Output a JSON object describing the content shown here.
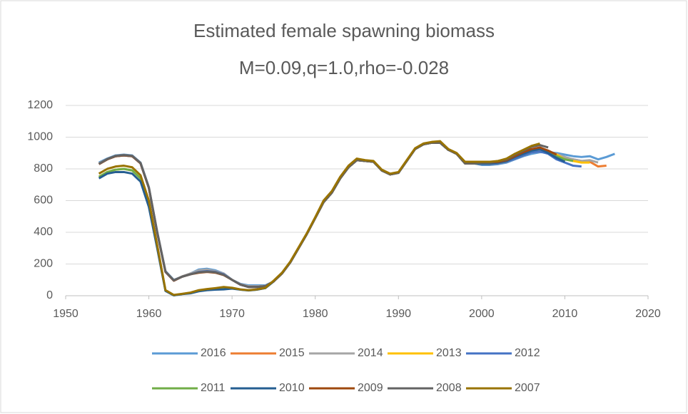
{
  "chart_data": {
    "type": "line",
    "title": "Estimated female spawning biomass",
    "subtitle": "M=0.09,q=1.0,rho=-0.028",
    "x": [
      1954,
      1955,
      1956,
      1957,
      1958,
      1959,
      1960,
      1961,
      1962,
      1963,
      1964,
      1965,
      1966,
      1967,
      1968,
      1969,
      1970,
      1971,
      1972,
      1973,
      1974,
      1975,
      1976,
      1977,
      1978,
      1979,
      1980,
      1981,
      1982,
      1983,
      1984,
      1985,
      1986,
      1987,
      1988,
      1989,
      1990,
      1991,
      1992,
      1993,
      1994,
      1995,
      1996,
      1997,
      1998,
      1999,
      2000,
      2001,
      2002,
      2003,
      2004,
      2005,
      2006,
      2007,
      2008,
      2009,
      2010,
      2011,
      2012,
      2013,
      2014,
      2015,
      2016
    ],
    "xlim": [
      1950,
      2020
    ],
    "xticks": [
      1950,
      1960,
      1970,
      1980,
      1990,
      2000,
      2010,
      2020
    ],
    "ylim": [
      0,
      1200
    ],
    "yticks": [
      0,
      200,
      400,
      600,
      800,
      1000,
      1200
    ],
    "grid": true,
    "legend": "bottom",
    "series": [
      {
        "name": "2016",
        "color": "#5b9bd5",
        "values": [
          840,
          865,
          885,
          890,
          885,
          840,
          685,
          405,
          155,
          100,
          120,
          140,
          165,
          170,
          160,
          140,
          100,
          75,
          65,
          65,
          65,
          90,
          140,
          210,
          300,
          390,
          490,
          590,
          650,
          740,
          810,
          855,
          850,
          845,
          790,
          765,
          775,
          850,
          925,
          955,
          965,
          965,
          920,
          895,
          835,
          835,
          825,
          825,
          830,
          840,
          860,
          880,
          895,
          905,
          905,
          900,
          890,
          880,
          875,
          880,
          860,
          875,
          895
        ]
      },
      {
        "name": "2015",
        "color": "#ed7d31",
        "values": [
          830,
          860,
          880,
          885,
          880,
          835,
          680,
          400,
          150,
          95,
          120,
          135,
          150,
          155,
          150,
          135,
          100,
          70,
          55,
          55,
          60,
          90,
          140,
          210,
          300,
          390,
          490,
          590,
          650,
          740,
          810,
          855,
          850,
          845,
          790,
          765,
          775,
          850,
          925,
          955,
          965,
          965,
          920,
          895,
          835,
          835,
          830,
          830,
          835,
          845,
          865,
          885,
          905,
          910,
          905,
          890,
          870,
          860,
          850,
          845,
          815,
          820,
          null
        ]
      },
      {
        "name": "2014",
        "color": "#a5a5a5",
        "values": [
          835,
          862,
          882,
          887,
          882,
          838,
          682,
          402,
          152,
          98,
          122,
          140,
          160,
          165,
          155,
          140,
          100,
          72,
          60,
          60,
          62,
          90,
          140,
          210,
          300,
          390,
          490,
          590,
          650,
          740,
          810,
          855,
          850,
          845,
          790,
          765,
          775,
          850,
          925,
          955,
          965,
          965,
          920,
          895,
          835,
          835,
          830,
          830,
          835,
          845,
          870,
          890,
          910,
          920,
          910,
          895,
          875,
          860,
          850,
          855,
          840,
          null,
          null
        ]
      },
      {
        "name": "2013",
        "color": "#ffc000",
        "values": [
          750,
          780,
          795,
          800,
          790,
          740,
          580,
          310,
          32,
          3,
          11,
          18,
          32,
          38,
          43,
          48,
          48,
          39,
          34,
          39,
          49,
          90,
          140,
          210,
          300,
          390,
          490,
          590,
          650,
          740,
          810,
          855,
          850,
          845,
          790,
          765,
          775,
          850,
          925,
          955,
          965,
          965,
          920,
          895,
          835,
          835,
          830,
          830,
          835,
          845,
          870,
          890,
          910,
          920,
          910,
          890,
          860,
          850,
          840,
          840,
          null,
          null,
          null
        ]
      },
      {
        "name": "2012",
        "color": "#4472c4",
        "values": [
          830,
          860,
          880,
          885,
          880,
          835,
          680,
          400,
          150,
          95,
          120,
          135,
          150,
          155,
          150,
          135,
          100,
          70,
          55,
          55,
          60,
          90,
          140,
          210,
          300,
          390,
          490,
          590,
          650,
          740,
          810,
          855,
          850,
          845,
          790,
          765,
          775,
          850,
          925,
          955,
          965,
          965,
          920,
          895,
          835,
          835,
          830,
          830,
          835,
          845,
          865,
          885,
          905,
          910,
          895,
          860,
          840,
          820,
          815,
          null,
          null,
          null,
          null
        ]
      },
      {
        "name": "2011",
        "color": "#70ad47",
        "values": [
          750,
          780,
          795,
          800,
          790,
          740,
          580,
          310,
          32,
          3,
          11,
          18,
          32,
          38,
          43,
          48,
          48,
          39,
          34,
          39,
          49,
          90,
          140,
          210,
          300,
          390,
          490,
          590,
          650,
          740,
          810,
          855,
          850,
          845,
          790,
          765,
          775,
          850,
          925,
          955,
          965,
          965,
          920,
          895,
          835,
          835,
          835,
          835,
          840,
          850,
          875,
          895,
          915,
          925,
          910,
          880,
          860,
          850,
          null,
          null,
          null,
          null,
          null
        ]
      },
      {
        "name": "2010",
        "color": "#255e91",
        "values": [
          740,
          770,
          780,
          780,
          770,
          720,
          560,
          300,
          30,
          2,
          10,
          15,
          28,
          35,
          38,
          40,
          45,
          38,
          33,
          38,
          48,
          90,
          140,
          210,
          300,
          390,
          490,
          590,
          650,
          740,
          810,
          855,
          850,
          845,
          790,
          765,
          775,
          850,
          925,
          955,
          965,
          965,
          920,
          895,
          835,
          835,
          835,
          835,
          840,
          850,
          875,
          895,
          915,
          925,
          900,
          870,
          845,
          null,
          null,
          null,
          null,
          null,
          null
        ]
      },
      {
        "name": "2009",
        "color": "#9e480e",
        "values": [
          830,
          860,
          880,
          885,
          880,
          835,
          680,
          400,
          150,
          95,
          120,
          135,
          145,
          150,
          145,
          130,
          100,
          70,
          55,
          55,
          60,
          90,
          140,
          210,
          300,
          390,
          490,
          590,
          650,
          740,
          810,
          855,
          850,
          845,
          790,
          765,
          775,
          850,
          925,
          955,
          965,
          965,
          920,
          895,
          835,
          835,
          840,
          840,
          845,
          855,
          880,
          905,
          925,
          935,
          915,
          890,
          null,
          null,
          null,
          null,
          null,
          null,
          null
        ]
      },
      {
        "name": "2008",
        "color": "#636363",
        "values": [
          832,
          862,
          882,
          887,
          882,
          837,
          682,
          402,
          152,
          97,
          120,
          135,
          148,
          152,
          148,
          132,
          100,
          70,
          55,
          55,
          60,
          90,
          140,
          210,
          300,
          390,
          490,
          590,
          650,
          740,
          810,
          855,
          850,
          845,
          790,
          765,
          775,
          850,
          925,
          955,
          965,
          965,
          920,
          895,
          835,
          835,
          840,
          840,
          850,
          860,
          890,
          915,
          940,
          950,
          935,
          null,
          null,
          null,
          null,
          null,
          null,
          null,
          null
        ]
      },
      {
        "name": "2007",
        "color": "#997300",
        "values": [
          770,
          800,
          815,
          820,
          810,
          760,
          600,
          320,
          35,
          5,
          12,
          20,
          35,
          42,
          48,
          55,
          50,
          40,
          35,
          40,
          50,
          95,
          145,
          215,
          305,
          395,
          495,
          600,
          660,
          750,
          820,
          865,
          855,
          850,
          795,
          770,
          780,
          855,
          930,
          960,
          970,
          975,
          925,
          900,
          845,
          845,
          845,
          845,
          850,
          865,
          895,
          920,
          945,
          960,
          null,
          null,
          null,
          null,
          null,
          null,
          null,
          null,
          null
        ]
      }
    ]
  }
}
